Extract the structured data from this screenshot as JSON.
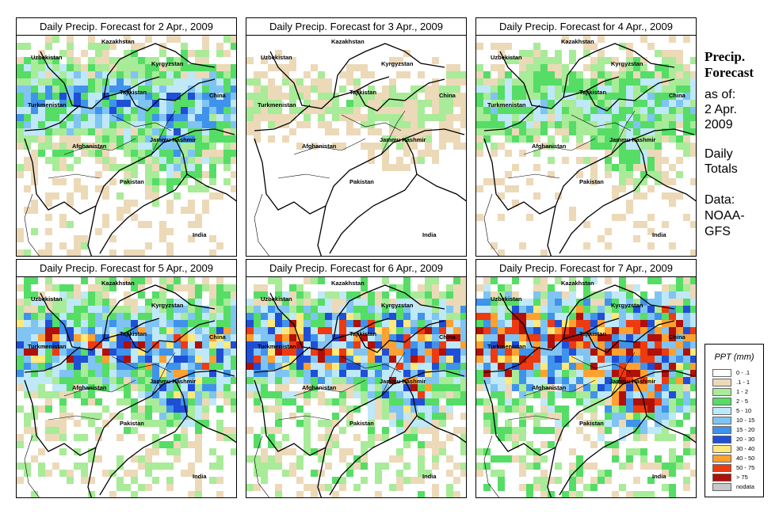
{
  "panels": [
    {
      "title": "Daily Precip. Forecast for  2 Apr., 2009",
      "seed": 11,
      "wet": 0.55
    },
    {
      "title": "Daily Precip. Forecast for  3 Apr., 2009",
      "seed": 23,
      "wet": 0.3
    },
    {
      "title": "Daily Precip. Forecast for  4 Apr., 2009",
      "seed": 37,
      "wet": 0.45
    },
    {
      "title": "Daily Precip. Forecast for  5 Apr., 2009",
      "seed": 41,
      "wet": 0.65
    },
    {
      "title": "Daily Precip. Forecast for  6 Apr., 2009",
      "seed": 53,
      "wet": 0.7
    },
    {
      "title": "Daily Precip. Forecast for  7 Apr., 2009",
      "seed": 67,
      "wet": 0.8
    }
  ],
  "map_labels": {
    "kazakhstan": "Kazakhstan",
    "uzbekistan": "Uzbekistan",
    "kyrgyzstan": "Kyrgyzstan",
    "tajikistan": "Tajikistan",
    "turkmenistan": "Turkmenistan",
    "china": "China",
    "afghanistan": "Afghanistan",
    "jammu_kashmir": "Jammu Kashmir",
    "pakistan": "Pakistan",
    "india": "India"
  },
  "side": {
    "title_line1": "Precip.",
    "title_line2": "Forecast",
    "asof_line1": "as of:",
    "asof_line2": "2 Apr.",
    "asof_line3": "2009",
    "totals_line1": "Daily",
    "totals_line2": "Totals",
    "data_line1": "Data:",
    "data_line2": "NOAA-",
    "data_line3": "GFS"
  },
  "legend": {
    "title": "PPT (mm)",
    "items": [
      {
        "label": "0 - .1",
        "color": "#ffffff"
      },
      {
        "label": ".1 - 1",
        "color": "#ecd9b8"
      },
      {
        "label": "1 - 2",
        "color": "#a8eb98"
      },
      {
        "label": "2 - 5",
        "color": "#55dd66"
      },
      {
        "label": "5 - 10",
        "color": "#bfe8f8"
      },
      {
        "label": "10 - 15",
        "color": "#7fc4f2"
      },
      {
        "label": "15 - 20",
        "color": "#3f93ea"
      },
      {
        "label": "20 - 30",
        "color": "#1f4fd6"
      },
      {
        "label": "30 - 40",
        "color": "#ffe97a"
      },
      {
        "label": "40 - 50",
        "color": "#ffa030"
      },
      {
        "label": "50 - 75",
        "color": "#ee3a10"
      },
      {
        "label": "> 75",
        "color": "#b01008"
      },
      {
        "label": "nodata",
        "color": "#c8c8c8"
      }
    ]
  }
}
